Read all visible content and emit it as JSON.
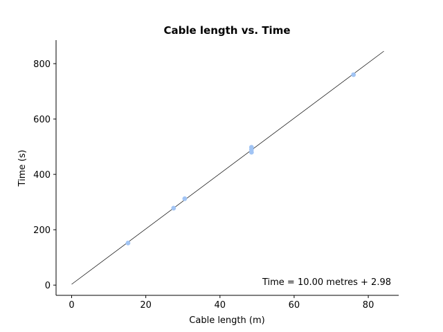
{
  "chart_data": {
    "type": "scatter",
    "title": "Cable length vs. Time",
    "xlabel": "Cable length (m)",
    "ylabel": "Time (s)",
    "xlim": [
      -4.2,
      88.2
    ],
    "ylim": [
      -37,
      885
    ],
    "xticks": [
      0,
      20,
      40,
      60,
      80
    ],
    "yticks": [
      0,
      200,
      400,
      600,
      800
    ],
    "grid": false,
    "series": [
      {
        "x": [
          15.2,
          27.5,
          30.5,
          48.5,
          48.5,
          48.5,
          76.0
        ],
        "y": [
          152,
          278,
          312,
          480,
          490,
          498,
          760
        ]
      }
    ],
    "fit_line": {
      "slope": 10.0,
      "intercept": 2.98,
      "x_range": [
        0,
        84.2
      ]
    },
    "annotation": "Time = 10.00 metres + 2.98",
    "colors": {
      "points": "#a1c4f4",
      "line": "#000000"
    }
  }
}
